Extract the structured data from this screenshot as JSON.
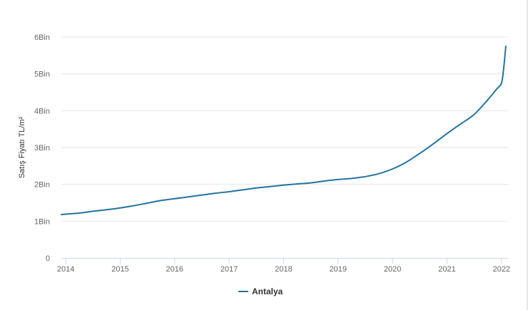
{
  "chart_data": {
    "type": "line",
    "title": "",
    "xlabel": "",
    "ylabel": "Satış Fiyatı TL/m²",
    "y_ticks": [
      {
        "value": 0,
        "label": "0"
      },
      {
        "value": 1000,
        "label": "1Bin"
      },
      {
        "value": 2000,
        "label": "2Bin"
      },
      {
        "value": 3000,
        "label": "3Bin"
      },
      {
        "value": 4000,
        "label": "4Bin"
      },
      {
        "value": 5000,
        "label": "5Bin"
      },
      {
        "value": 6000,
        "label": "6Bin"
      }
    ],
    "x_ticks": [
      {
        "value": 2014,
        "label": "2014"
      },
      {
        "value": 2015,
        "label": "2015"
      },
      {
        "value": 2016,
        "label": "2016"
      },
      {
        "value": 2017,
        "label": "2017"
      },
      {
        "value": 2018,
        "label": "2018"
      },
      {
        "value": 2019,
        "label": "2019"
      },
      {
        "value": 2020,
        "label": "2020"
      },
      {
        "value": 2021,
        "label": "2021"
      },
      {
        "value": 2022,
        "label": "2022"
      }
    ],
    "xlim": [
      2013.92,
      2022.12
    ],
    "ylim": [
      0,
      6000
    ],
    "grid": true,
    "legend_position": "bottom-center",
    "series": [
      {
        "name": "Antalya",
        "color": "#2274a0",
        "x": [
          2013.92,
          2014.25,
          2014.5,
          2014.75,
          2015.0,
          2015.25,
          2015.5,
          2015.75,
          2016.0,
          2016.25,
          2016.5,
          2016.75,
          2017.0,
          2017.25,
          2017.5,
          2017.75,
          2018.0,
          2018.25,
          2018.5,
          2018.75,
          2019.0,
          2019.25,
          2019.5,
          2019.75,
          2020.0,
          2020.25,
          2020.5,
          2020.75,
          2021.0,
          2021.25,
          2021.5,
          2021.75,
          2021.92,
          2022.0,
          2022.04,
          2022.08
        ],
        "y": [
          1180,
          1220,
          1270,
          1310,
          1360,
          1420,
          1490,
          1560,
          1610,
          1660,
          1710,
          1760,
          1800,
          1850,
          1900,
          1940,
          1980,
          2010,
          2040,
          2090,
          2130,
          2160,
          2210,
          2290,
          2420,
          2600,
          2840,
          3100,
          3380,
          3640,
          3900,
          4300,
          4600,
          4750,
          5150,
          5750
        ]
      }
    ]
  }
}
